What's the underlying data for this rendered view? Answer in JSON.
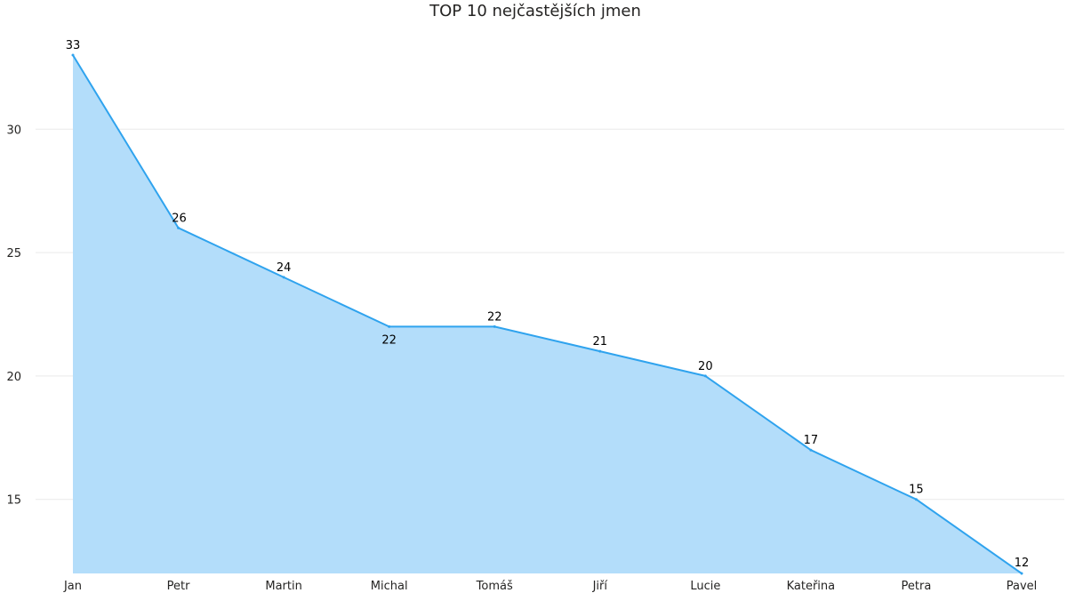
{
  "chart_data": {
    "type": "area",
    "title": "TOP 10 nejčastějších jmen",
    "categories": [
      "Jan",
      "Petr",
      "Martin",
      "Michal",
      "Tomáš",
      "Jiří",
      "Lucie",
      "Kateřina",
      "Petra",
      "Pavel"
    ],
    "values": [
      33,
      26,
      24,
      22,
      22,
      21,
      20,
      17,
      15,
      12
    ],
    "data_labels": [
      "33",
      "26",
      "24",
      "22",
      "22",
      "21",
      "20",
      "17",
      "15",
      "12"
    ],
    "xlabel": "",
    "ylabel": "",
    "ylim": [
      12,
      34
    ],
    "yticks": [
      15,
      20,
      25,
      30
    ],
    "ytick_labels": [
      "15",
      "20",
      "25",
      "30"
    ],
    "grid": true,
    "legend": "none",
    "colors": {
      "line": "#2fa3ee",
      "fill": "#b3ddfa",
      "grid": "#e9e9e9"
    }
  }
}
